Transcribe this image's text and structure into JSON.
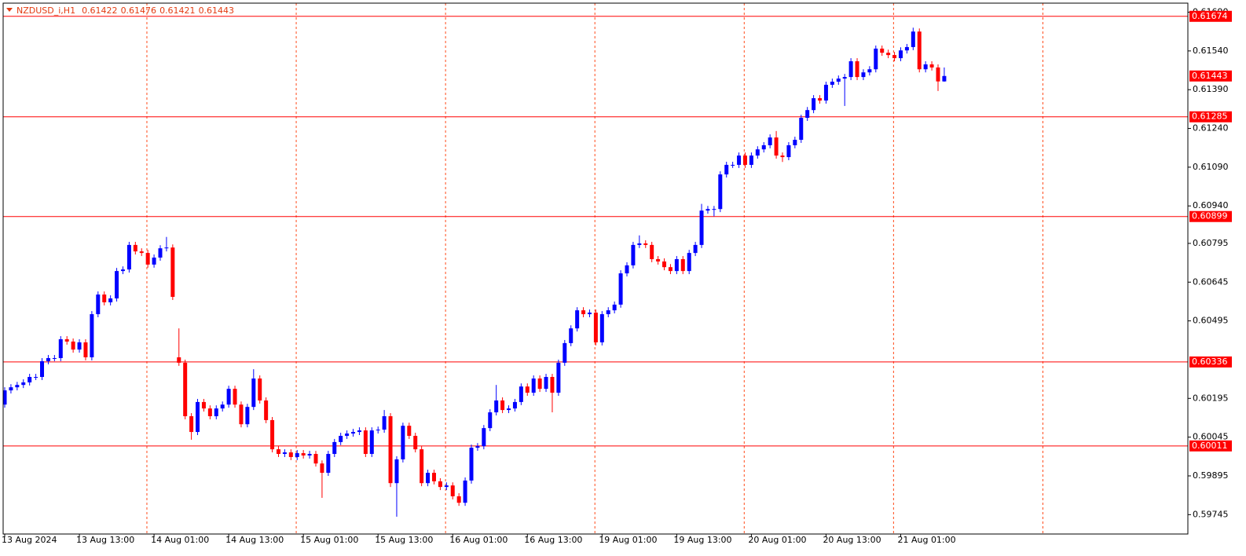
{
  "chart_data": {
    "type": "candlestick",
    "title": "NZDUSD_i,H1",
    "up_color": "#0000ff",
    "down_color": "#ff0000",
    "level_color": "#ff0000",
    "ylim": [
      0.5967,
      0.61725
    ],
    "yticks": [
      {
        "value": 0.6169,
        "label": "0.61690"
      },
      {
        "value": 0.6154,
        "label": "0.61540"
      },
      {
        "value": 0.6139,
        "label": "0.61390"
      },
      {
        "value": 0.6124,
        "label": "0.61240"
      },
      {
        "value": 0.6109,
        "label": "0.61090"
      },
      {
        "value": 0.6094,
        "label": "0.60940"
      },
      0.60795,
      0.60645,
      0.60495,
      0.60195,
      0.60045,
      0.59895,
      0.59745
    ],
    "levels": [
      0.61674,
      0.61285,
      0.60899,
      0.60336,
      0.60011
    ],
    "categories": [
      "13 Aug 2024",
      null,
      null,
      null,
      null,
      null,
      null,
      null,
      null,
      null,
      null,
      null,
      "13 Aug 13:00",
      null,
      null,
      null,
      null,
      null,
      null,
      null,
      null,
      null,
      null,
      null,
      "14 Aug 01:00",
      null,
      null,
      null,
      null,
      null,
      null,
      null,
      null,
      null,
      null,
      null,
      "14 Aug 13:00",
      null,
      null,
      null,
      null,
      null,
      null,
      null,
      null,
      null,
      null,
      null,
      "15 Aug 01:00",
      null,
      null,
      null,
      null,
      null,
      null,
      null,
      null,
      null,
      null,
      null,
      "15 Aug 13:00",
      null,
      null,
      null,
      null,
      null,
      null,
      null,
      null,
      null,
      null,
      null,
      "16 Aug 01:00",
      null,
      null,
      null,
      null,
      null,
      null,
      null,
      null,
      null,
      null,
      null,
      "16 Aug 13:00",
      null,
      null,
      null,
      null,
      null,
      null,
      null,
      null,
      null,
      null,
      null,
      "19 Aug 01:00",
      null,
      null,
      null,
      null,
      null,
      null,
      null,
      null,
      null,
      null,
      null,
      "19 Aug 13:00",
      null,
      null,
      null,
      null,
      null,
      null,
      null,
      null,
      null,
      null,
      null,
      "20 Aug 01:00",
      null,
      null,
      null,
      null,
      null,
      null,
      null,
      null,
      null,
      null,
      null,
      "20 Aug 13:00",
      null,
      null,
      null,
      null,
      null,
      null,
      null,
      null,
      null,
      null,
      null,
      "21 Aug 01:00",
      null,
      null,
      null,
      null,
      null,
      null,
      null
    ],
    "open": [
      0.60171,
      0.60226,
      0.60238,
      0.60247,
      0.60257,
      0.60278,
      0.60278,
      0.60339,
      0.60351,
      0.60351,
      0.60424,
      0.60415,
      0.60384,
      0.60412,
      0.60354,
      0.60521,
      0.60597,
      0.60567,
      0.60582,
      0.60688,
      0.60694,
      0.60789,
      0.60764,
      0.60758,
      0.60713,
      0.6074,
      0.60776,
      0.60779,
      0.60354,
      0.60333,
      0.60126,
      0.60065,
      0.60181,
      0.60156,
      0.60126,
      0.60156,
      0.60171,
      0.60232,
      0.60171,
      0.60095,
      0.60162,
      0.60272,
      0.60187,
      0.60111,
      0.59998,
      0.5998,
      0.59986,
      0.59968,
      0.59983,
      0.59974,
      0.5998,
      0.59943,
      0.59907,
      0.5998,
      0.60026,
      0.6005,
      0.60059,
      0.60065,
      0.60071,
      0.5998,
      0.60071,
      0.60074,
      0.60126,
      0.59867,
      0.59959,
      0.60089,
      0.6005,
      0.59998,
      0.59867,
      0.59907,
      0.59874,
      0.59852,
      0.59858,
      0.59816,
      0.59791,
      0.59877,
      0.60004,
      0.6001,
      0.6008,
      0.60141,
      0.60187,
      0.6015,
      0.60156,
      0.60181,
      0.60241,
      0.60217,
      0.60272,
      0.60232,
      0.60278,
      0.60217,
      0.60333,
      0.60409,
      0.60466,
      0.60536,
      0.60521,
      0.60527,
      0.60412,
      0.60521,
      0.60536,
      0.60558,
      0.60679,
      0.6071,
      0.60789,
      0.60795,
      0.60789,
      0.60734,
      0.60725,
      0.60703,
      0.60688,
      0.60734,
      0.60688,
      0.60758,
      0.60789,
      0.60922,
      0.60928,
      0.60928,
      0.61062,
      0.61099,
      0.61099,
      0.61135,
      0.61099,
      0.61135,
      0.61159,
      0.61175,
      0.61205,
      0.61135,
      0.61129,
      0.61175,
      0.61196,
      0.61281,
      0.61311,
      0.61357,
      0.61348,
      0.61409,
      0.61421,
      0.61433,
      0.61439,
      0.615,
      0.61439,
      0.61457,
      0.61469,
      0.61549,
      0.61533,
      0.61524,
      0.61512,
      0.61542,
      0.61555,
      0.61615,
      0.61469,
      0.61488,
      0.61476,
      0.61422
    ],
    "high": [
      0.60238,
      0.6025,
      0.60259,
      0.60269,
      0.6029,
      0.6029,
      0.60351,
      0.60363,
      0.60363,
      0.60436,
      0.60436,
      0.60427,
      0.60424,
      0.60424,
      0.60533,
      0.60609,
      0.60609,
      0.60594,
      0.607,
      0.60706,
      0.60801,
      0.60801,
      0.60776,
      0.6077,
      0.60752,
      0.60788,
      0.6082,
      0.60791,
      0.60466,
      0.60345,
      0.60138,
      0.60193,
      0.60193,
      0.60168,
      0.60168,
      0.60183,
      0.60244,
      0.60244,
      0.60183,
      0.60174,
      0.60308,
      0.60284,
      0.60199,
      0.60123,
      0.6001,
      0.59998,
      0.59998,
      0.59995,
      0.59995,
      0.59992,
      0.59992,
      0.59955,
      0.59992,
      0.60038,
      0.60062,
      0.60071,
      0.60077,
      0.60083,
      0.60083,
      0.60083,
      0.60086,
      0.6015,
      0.60138,
      0.59971,
      0.60101,
      0.60101,
      0.60062,
      0.6001,
      0.59919,
      0.59919,
      0.59886,
      0.5987,
      0.5987,
      0.59828,
      0.59889,
      0.60016,
      0.60022,
      0.60092,
      0.60153,
      0.60247,
      0.60199,
      0.60168,
      0.60193,
      0.60253,
      0.60253,
      0.60284,
      0.60284,
      0.6029,
      0.6029,
      0.60345,
      0.60421,
      0.60478,
      0.60548,
      0.60548,
      0.60539,
      0.60539,
      0.60533,
      0.60548,
      0.6057,
      0.60691,
      0.60722,
      0.60801,
      0.60826,
      0.60807,
      0.60801,
      0.60746,
      0.60737,
      0.60715,
      0.60746,
      0.60746,
      0.6077,
      0.60801,
      0.60948,
      0.6094,
      0.6094,
      0.61074,
      0.61111,
      0.61111,
      0.61147,
      0.61147,
      0.61147,
      0.61171,
      0.61187,
      0.61217,
      0.6123,
      0.61147,
      0.61187,
      0.61208,
      0.61293,
      0.61323,
      0.61369,
      0.61369,
      0.61421,
      0.61433,
      0.61445,
      0.61451,
      0.61512,
      0.61512,
      0.61469,
      0.61481,
      0.61561,
      0.61561,
      0.61545,
      0.61536,
      0.61554,
      0.61567,
      0.6163,
      0.61627,
      0.615,
      0.615,
      0.61488,
      0.61476
    ],
    "low": [
      0.60159,
      0.60214,
      0.60226,
      0.60235,
      0.60245,
      0.60266,
      0.60266,
      0.60327,
      0.60339,
      0.60339,
      0.60403,
      0.60372,
      0.60372,
      0.60342,
      0.60342,
      0.60509,
      0.60555,
      0.60555,
      0.6057,
      0.60676,
      0.60682,
      0.60752,
      0.60746,
      0.60701,
      0.60701,
      0.60728,
      0.60764,
      0.60576,
      0.60321,
      0.60114,
      0.60035,
      0.60053,
      0.60144,
      0.60114,
      0.60114,
      0.60144,
      0.60159,
      0.60159,
      0.60083,
      0.60083,
      0.6015,
      0.60175,
      0.60099,
      0.59986,
      0.59968,
      0.59968,
      0.59956,
      0.59956,
      0.59962,
      0.59962,
      0.59931,
      0.5981,
      0.59895,
      0.59968,
      0.60014,
      0.60038,
      0.60047,
      0.60053,
      0.59968,
      0.59968,
      0.60059,
      0.60062,
      0.59852,
      0.59737,
      0.59947,
      0.60038,
      0.59986,
      0.59855,
      0.59855,
      0.59862,
      0.5984,
      0.5984,
      0.59804,
      0.59779,
      0.59779,
      0.59865,
      0.59992,
      0.59998,
      0.60068,
      0.60129,
      0.60138,
      0.60138,
      0.60144,
      0.60169,
      0.60205,
      0.60205,
      0.6022,
      0.6022,
      0.60141,
      0.60205,
      0.60321,
      0.60397,
      0.60454,
      0.60509,
      0.60509,
      0.604,
      0.604,
      0.60509,
      0.60524,
      0.60546,
      0.60667,
      0.60698,
      0.60777,
      0.60777,
      0.60722,
      0.60713,
      0.60691,
      0.60676,
      0.60676,
      0.60676,
      0.60676,
      0.60746,
      0.60777,
      0.6091,
      0.609,
      0.60916,
      0.6105,
      0.61087,
      0.61087,
      0.61087,
      0.61087,
      0.61123,
      0.61147,
      0.61163,
      0.61123,
      0.6111,
      0.61117,
      0.61163,
      0.61184,
      0.61269,
      0.61299,
      0.61336,
      0.61336,
      0.61397,
      0.61409,
      0.61327,
      0.61427,
      0.61427,
      0.61427,
      0.61445,
      0.61457,
      0.61521,
      0.61512,
      0.615,
      0.615,
      0.6153,
      0.61543,
      0.61457,
      0.61457,
      0.61464,
      0.61385,
      0.61421
    ],
    "close": [
      0.60226,
      0.60238,
      0.60247,
      0.60257,
      0.60278,
      0.60278,
      0.60339,
      0.60351,
      0.60351,
      0.60424,
      0.60415,
      0.60384,
      0.60412,
      0.60354,
      0.60521,
      0.60597,
      0.60567,
      0.60582,
      0.60688,
      0.60694,
      0.60789,
      0.60764,
      0.60758,
      0.60713,
      0.6074,
      0.60776,
      0.60779,
      0.60588,
      0.60333,
      0.60126,
      0.60065,
      0.60181,
      0.60156,
      0.60126,
      0.60156,
      0.60171,
      0.60232,
      0.60171,
      0.60095,
      0.60162,
      0.60272,
      0.60187,
      0.60111,
      0.59998,
      0.5998,
      0.59986,
      0.59968,
      0.59983,
      0.59974,
      0.5998,
      0.59943,
      0.59907,
      0.5998,
      0.60026,
      0.6005,
      0.60059,
      0.60065,
      0.60071,
      0.5998,
      0.60071,
      0.60074,
      0.60126,
      0.59867,
      0.59959,
      0.60089,
      0.6005,
      0.59998,
      0.59867,
      0.59907,
      0.59874,
      0.59852,
      0.59858,
      0.59816,
      0.59791,
      0.59877,
      0.60004,
      0.6001,
      0.6008,
      0.60141,
      0.60187,
      0.6015,
      0.60156,
      0.60181,
      0.60241,
      0.60217,
      0.60272,
      0.60232,
      0.60278,
      0.60217,
      0.60333,
      0.60409,
      0.60466,
      0.60536,
      0.60521,
      0.60527,
      0.60412,
      0.60521,
      0.60536,
      0.60558,
      0.60679,
      0.6071,
      0.60789,
      0.60795,
      0.60789,
      0.60734,
      0.60725,
      0.60703,
      0.60688,
      0.60734,
      0.60688,
      0.60758,
      0.60789,
      0.60922,
      0.60928,
      0.60928,
      0.61062,
      0.61099,
      0.61099,
      0.61135,
      0.61099,
      0.61135,
      0.61159,
      0.61175,
      0.61205,
      0.61135,
      0.61129,
      0.61175,
      0.61196,
      0.61281,
      0.61311,
      0.61357,
      0.61348,
      0.61409,
      0.61421,
      0.61433,
      0.61439,
      0.615,
      0.61439,
      0.61457,
      0.61469,
      0.61549,
      0.61533,
      0.61524,
      0.61512,
      0.61542,
      0.61555,
      0.61615,
      0.61469,
      0.61488,
      0.61476,
      0.61422,
      0.61443
    ]
  }
}
